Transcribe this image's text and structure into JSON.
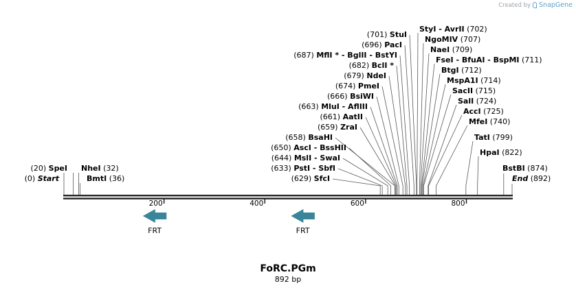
{
  "credit": {
    "prefix": "Created by",
    "brand": "SnapGene"
  },
  "map": {
    "name": "FoRC.PGm",
    "size_label": "892 bp",
    "length": 892,
    "ticks": [
      200,
      400,
      600,
      800
    ],
    "enzymes": [
      {
        "label": "SfcI",
        "pos": 629,
        "pos_label": "(629)",
        "side": "right"
      },
      {
        "label": "PstI - SbfI",
        "pos": 633,
        "pos_label": "(633)",
        "side": "right"
      },
      {
        "label": "MslI - SwaI",
        "pos": 644,
        "pos_label": "(644)",
        "side": "right"
      },
      {
        "label": "AscI - BssHII",
        "pos": 650,
        "pos_label": "(650)",
        "side": "right"
      },
      {
        "label": "BsaHI",
        "pos": 658,
        "pos_label": "(658)",
        "side": "right"
      },
      {
        "label": "ZraI",
        "pos": 659,
        "pos_label": "(659)",
        "side": "right"
      },
      {
        "label": "AatII",
        "pos": 661,
        "pos_label": "(661)",
        "side": "right"
      },
      {
        "label": "MluI - AflIII",
        "pos": 663,
        "pos_label": "(663)",
        "side": "right"
      },
      {
        "label": "BsiWI",
        "pos": 666,
        "pos_label": "(666)",
        "side": "right"
      },
      {
        "label": "PmeI",
        "pos": 674,
        "pos_label": "(674)",
        "side": "right"
      },
      {
        "label": "NdeI",
        "pos": 679,
        "pos_label": "(679)",
        "side": "right"
      },
      {
        "label": "BclI *",
        "pos": 682,
        "pos_label": "(682)",
        "side": "right"
      },
      {
        "label": "MflI * - BglII - BstYI",
        "pos": 687,
        "pos_label": "(687)",
        "side": "right"
      },
      {
        "label": "PacI",
        "pos": 696,
        "pos_label": "(696)",
        "side": "right"
      },
      {
        "label": "StuI",
        "pos": 701,
        "pos_label": "(701)",
        "side": "right"
      },
      {
        "label": "StyI - AvrII",
        "pos": 702,
        "pos_label": "(702)",
        "side": "left"
      },
      {
        "label": "NgoMIV",
        "pos": 707,
        "pos_label": "(707)",
        "side": "left"
      },
      {
        "label": "NaeI",
        "pos": 709,
        "pos_label": "(709)",
        "side": "left"
      },
      {
        "label": "FseI - BfuAI - BspMI",
        "pos": 711,
        "pos_label": "(711)",
        "side": "left"
      },
      {
        "label": "BtgI",
        "pos": 712,
        "pos_label": "(712)",
        "side": "left"
      },
      {
        "label": "MspA1I",
        "pos": 714,
        "pos_label": "(714)",
        "side": "left"
      },
      {
        "label": "SacII",
        "pos": 715,
        "pos_label": "(715)",
        "side": "left"
      },
      {
        "label": "SalI",
        "pos": 724,
        "pos_label": "(724)",
        "side": "left"
      },
      {
        "label": "AccI",
        "pos": 725,
        "pos_label": "(725)",
        "side": "left"
      },
      {
        "label": "MfeI",
        "pos": 740,
        "pos_label": "(740)",
        "side": "left"
      },
      {
        "label": "TatI",
        "pos": 799,
        "pos_label": "(799)",
        "side": "left"
      },
      {
        "label": "HpaI",
        "pos": 822,
        "pos_label": "(822)",
        "side": "left"
      },
      {
        "label": "BstBI",
        "pos": 874,
        "pos_label": "(874)",
        "side": "left"
      },
      {
        "label": "End",
        "pos": 892,
        "pos_label": "(892)",
        "side": "left",
        "italic": true
      },
      {
        "label": "Start",
        "pos": 0,
        "pos_label": "(0)",
        "side": "right",
        "italic": true
      },
      {
        "label": "SpeI",
        "pos": 20,
        "pos_label": "(20)",
        "side": "right"
      },
      {
        "label": "NheI",
        "pos": 32,
        "pos_label": "(32)",
        "side": "left"
      },
      {
        "label": "BmtI",
        "pos": 36,
        "pos_label": "(36)",
        "side": "left"
      }
    ],
    "features": [
      {
        "label": "FRT",
        "start": 158,
        "end": 205,
        "direction": "reverse",
        "color": "#3a8599"
      },
      {
        "label": "FRT",
        "start": 452,
        "end": 499,
        "direction": "reverse",
        "color": "#3a8599"
      }
    ]
  }
}
